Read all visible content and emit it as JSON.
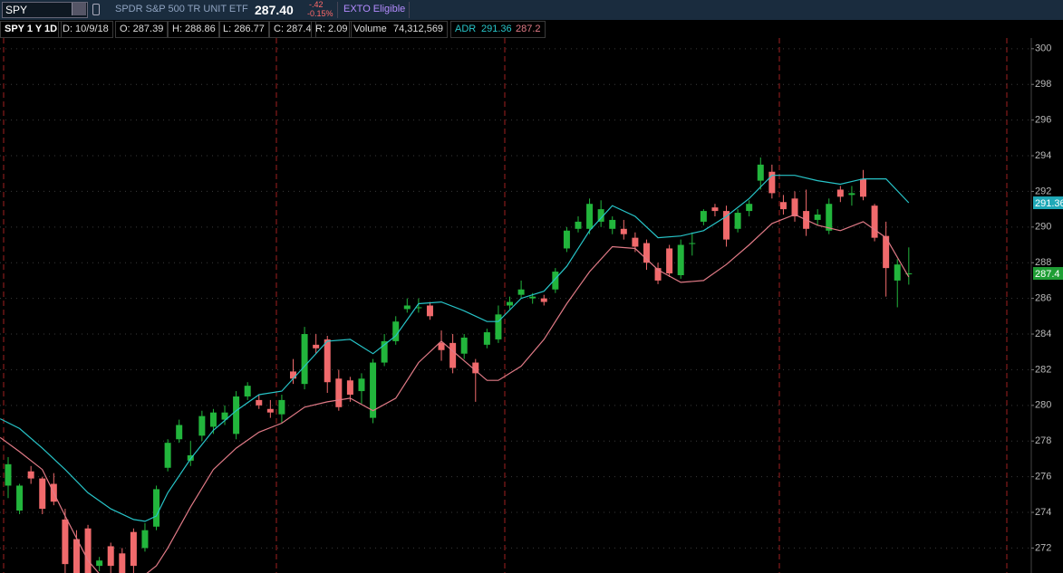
{
  "header": {
    "symbol": "SPY",
    "description": "SPDR S&P 500 TR UNIT ETF",
    "last": "287.40",
    "change": "-.42",
    "change_pct": "-0.15%",
    "badge": "EXTO Eligible"
  },
  "info": {
    "chart": "SPY 1 Y 1D",
    "date": "D: 10/9/18",
    "open": "O: 287.39",
    "high": "H: 288.86",
    "low": "L: 286.77",
    "close": "C: 287.4",
    "range": "R: 2.09",
    "volume_label": "Volume",
    "volume": "74,312,569",
    "adr_label": "ADR",
    "adr_upper": "291.36",
    "adr_lower": "287.2"
  },
  "chart_data": {
    "type": "candlestick",
    "up_color": "#22b53c",
    "down_color": "#f06a6c",
    "grid": true,
    "ylim": [
      270.6,
      300.6
    ],
    "yticks": [
      272,
      274,
      276,
      278,
      280,
      282,
      284,
      286,
      288,
      290,
      292,
      294,
      296,
      298,
      300
    ],
    "open": [
      275.5,
      274.1,
      276.3,
      275.9,
      275.6,
      273.6,
      272.5,
      273.1,
      271.0,
      272.1,
      271.7,
      272.9,
      272.0,
      273.2,
      276.5,
      278.1,
      276.9,
      278.3,
      278.8,
      279.2,
      278.4,
      280.5,
      280.3,
      279.8,
      279.5,
      281.9,
      281.2,
      283.4,
      283.7,
      281.5,
      281.4,
      280.8,
      279.3,
      282.4,
      283.6,
      285.4,
      285.5,
      285.6,
      283.5,
      283.5,
      282.9,
      282.4,
      283.4,
      283.7,
      285.6,
      286.2,
      286.0,
      286.0,
      286.5,
      288.8,
      289.9,
      289.9,
      290.3,
      289.9,
      289.9,
      289.4,
      289.1,
      287.7,
      288.8,
      287.3,
      289.1,
      290.3,
      291.1,
      290.9,
      289.9,
      290.9,
      292.6,
      293.1,
      291.4,
      291.6,
      290.9,
      290.4,
      289.8,
      292.1,
      291.8,
      292.7,
      291.2,
      289.5,
      287.0,
      287.39
    ],
    "high": [
      277.1,
      275.6,
      276.6,
      276.0,
      276.2,
      274.2,
      273.0,
      273.3,
      271.5,
      272.3,
      272.0,
      273.1,
      273.4,
      275.5,
      278.1,
      279.2,
      278.0,
      279.7,
      279.8,
      280.0,
      280.8,
      281.3,
      280.6,
      280.3,
      280.6,
      282.6,
      284.4,
      284.0,
      283.9,
      282.0,
      281.6,
      281.8,
      282.6,
      284.0,
      285.0,
      286.0,
      286.0,
      285.8,
      284.2,
      284.0,
      284.0,
      282.6,
      284.3,
      285.6,
      286.1,
      287.0,
      286.3,
      286.2,
      287.7,
      290.0,
      290.6,
      291.6,
      291.5,
      290.6,
      290.4,
      289.7,
      289.3,
      288.0,
      289.0,
      289.3,
      289.7,
      291.0,
      291.3,
      291.2,
      291.0,
      291.5,
      293.9,
      293.5,
      291.8,
      292.0,
      292.1,
      291.0,
      291.6,
      292.3,
      292.3,
      293.2,
      291.3,
      290.3,
      288.2,
      288.86
    ],
    "low": [
      274.8,
      273.9,
      275.6,
      273.9,
      274.4,
      270.6,
      270.3,
      270.3,
      270.7,
      270.5,
      270.3,
      270.6,
      271.8,
      273.0,
      276.3,
      277.9,
      276.6,
      278.0,
      278.4,
      278.9,
      278.1,
      280.3,
      279.8,
      279.3,
      279.0,
      281.2,
      280.9,
      282.9,
      280.7,
      279.7,
      280.2,
      280.1,
      279.0,
      282.2,
      283.4,
      285.2,
      285.2,
      284.8,
      282.5,
      281.8,
      282.6,
      280.2,
      283.2,
      283.5,
      285.4,
      286.0,
      285.7,
      285.6,
      286.3,
      288.6,
      289.7,
      289.6,
      290.0,
      289.6,
      289.3,
      288.6,
      287.6,
      286.8,
      287.2,
      287.1,
      288.4,
      290.1,
      290.6,
      288.9,
      289.7,
      290.6,
      292.1,
      291.6,
      290.7,
      290.3,
      289.5,
      290.1,
      289.6,
      291.4,
      291.2,
      291.5,
      289.2,
      286.1,
      285.5,
      286.77
    ],
    "close": [
      276.7,
      275.5,
      275.9,
      274.2,
      274.6,
      271.1,
      270.6,
      270.6,
      271.3,
      271.0,
      270.6,
      271.0,
      273.0,
      275.3,
      277.9,
      278.9,
      277.2,
      279.4,
      279.6,
      279.6,
      280.5,
      281.1,
      280.0,
      279.6,
      280.3,
      281.5,
      284.0,
      283.2,
      281.3,
      279.9,
      280.6,
      281.5,
      282.4,
      283.6,
      284.7,
      285.6,
      285.5,
      285.0,
      283.1,
      282.1,
      283.8,
      281.8,
      284.1,
      285.1,
      285.8,
      286.5,
      286.1,
      285.8,
      287.5,
      289.8,
      290.3,
      291.3,
      291.0,
      290.4,
      289.6,
      288.9,
      288.0,
      287.0,
      287.4,
      289.0,
      289.1,
      290.9,
      290.9,
      289.3,
      290.8,
      291.3,
      293.5,
      291.9,
      291.0,
      290.6,
      289.9,
      290.7,
      291.3,
      291.7,
      291.9,
      291.7,
      289.4,
      287.7,
      287.9,
      287.4
    ],
    "lines": [
      {
        "color": "#27c4c8",
        "x": [
          -0.7,
          1,
          3,
          5,
          7,
          9,
          11,
          12,
          13,
          14,
          16,
          18,
          20,
          22,
          24,
          26,
          28,
          30,
          32,
          34,
          36,
          38,
          40,
          42,
          43,
          45,
          47,
          49,
          51,
          53,
          55,
          57,
          59,
          61,
          63,
          65,
          67,
          69,
          71,
          73,
          75,
          77,
          79
        ],
        "values": [
          279.25,
          278.7,
          277.6,
          276.4,
          275.1,
          274.2,
          273.6,
          273.5,
          273.8,
          275.1,
          277.0,
          278.6,
          279.7,
          280.6,
          280.8,
          282.2,
          283.6,
          283.7,
          282.9,
          283.9,
          285.7,
          285.8,
          285.3,
          284.7,
          284.7,
          286.0,
          286.4,
          287.8,
          289.8,
          291.2,
          290.6,
          289.4,
          289.5,
          289.8,
          290.6,
          291.6,
          292.9,
          292.9,
          292.6,
          292.4,
          292.7,
          292.7,
          291.36
        ]
      },
      {
        "color": "#e07a86",
        "x": [
          -0.7,
          1,
          3,
          5,
          7,
          9,
          11,
          12,
          13,
          14,
          16,
          18,
          20,
          22,
          24,
          26,
          28,
          30,
          32,
          34,
          36,
          38,
          40,
          42,
          43,
          45,
          47,
          49,
          51,
          53,
          55,
          57,
          59,
          61,
          63,
          65,
          67,
          69,
          71,
          73,
          75,
          77,
          79
        ],
        "values": [
          278.2,
          277.4,
          276.4,
          273.8,
          271.3,
          269.8,
          270.0,
          270.5,
          271.0,
          272.0,
          274.3,
          276.4,
          277.6,
          278.5,
          279.0,
          279.9,
          280.2,
          280.4,
          279.7,
          280.4,
          282.4,
          283.6,
          282.5,
          281.4,
          281.4,
          282.2,
          283.7,
          285.7,
          287.5,
          288.9,
          288.8,
          287.6,
          286.9,
          287.0,
          287.9,
          289.0,
          290.2,
          290.7,
          290.1,
          289.8,
          290.3,
          289.4,
          287.2
        ]
      }
    ]
  }
}
